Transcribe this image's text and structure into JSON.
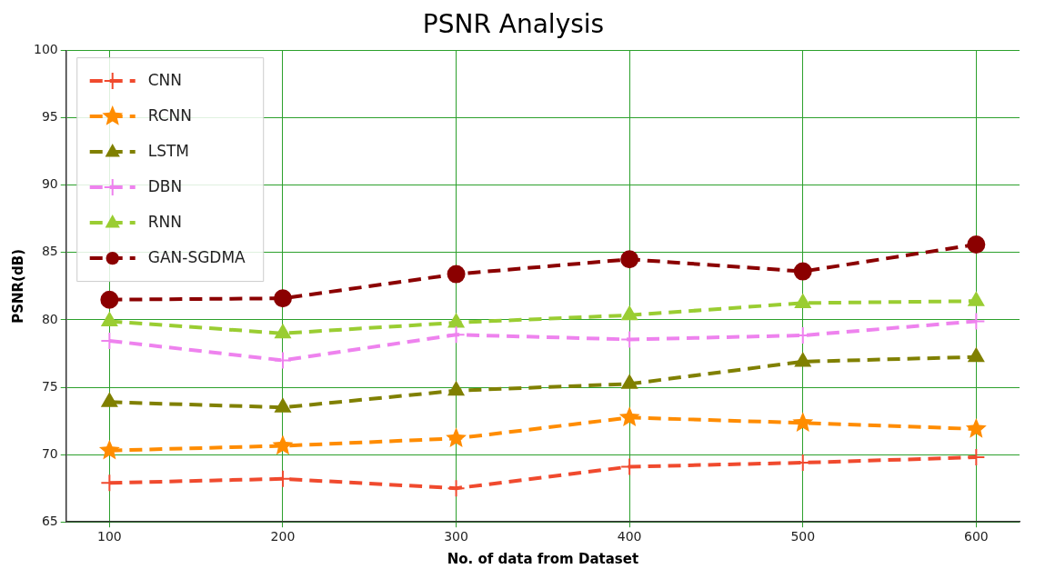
{
  "chart_data": {
    "type": "line",
    "title": "PSNR Analysis",
    "xlabel": "No. of data from Dataset",
    "ylabel": "PSNR(dB)",
    "x": [
      100,
      200,
      300,
      400,
      500,
      600
    ],
    "xlim": [
      75,
      625
    ],
    "xticks": [
      100,
      200,
      300,
      400,
      500,
      600
    ],
    "ylim": [
      65,
      100
    ],
    "yticks": [
      65,
      70,
      75,
      80,
      85,
      90,
      95,
      100
    ],
    "grid": true,
    "legend": "top left",
    "line_style": "dashed",
    "series": [
      {
        "name": "CNN",
        "color": "#f04a2e",
        "marker": "cross",
        "values": [
          67.9,
          68.2,
          67.5,
          69.1,
          69.4,
          69.8
        ]
      },
      {
        "name": "RCNN",
        "color": "#ff8c00",
        "marker": "star",
        "values": [
          70.3,
          70.65,
          71.2,
          72.75,
          72.35,
          71.9
        ]
      },
      {
        "name": "LSTM",
        "color": "#808000",
        "marker": "triangle",
        "values": [
          73.9,
          73.5,
          74.75,
          75.25,
          76.9,
          77.25
        ]
      },
      {
        "name": "DBN",
        "color": "#ee82ee",
        "marker": "cross",
        "values": [
          78.45,
          77.0,
          78.9,
          78.55,
          78.85,
          79.9
        ]
      },
      {
        "name": "RNN",
        "color": "#9acd32",
        "marker": "triangle",
        "values": [
          79.9,
          79.0,
          79.8,
          80.35,
          81.25,
          81.4
        ]
      },
      {
        "name": "GAN-SGDMA",
        "color": "#8b0000",
        "marker": "circle",
        "values": [
          81.5,
          81.6,
          83.4,
          84.5,
          83.6,
          85.6
        ]
      }
    ]
  }
}
